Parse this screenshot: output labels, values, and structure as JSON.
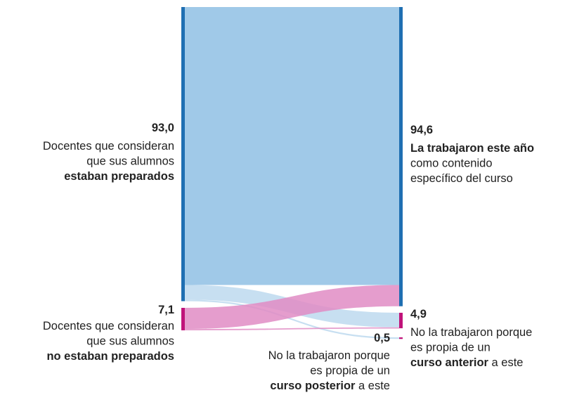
{
  "chart_data": {
    "type": "sankey",
    "nodes": [
      {
        "value": 93.0,
        "value_label": "93,0",
        "side": "left",
        "color": "#1f6fb2",
        "flow_color": "#8fc0e4",
        "lines": [
          [
            {
              "text": "Docentes que consideran"
            }
          ],
          [
            {
              "text": "que sus alumnos"
            }
          ],
          [
            {
              "text": "estaban preparados",
              "bold": true
            }
          ]
        ]
      },
      {
        "value": 7.1,
        "value_label": "7,1",
        "side": "left",
        "color": "#c0137a",
        "flow_color": "#e08cc4",
        "lines": [
          [
            {
              "text": "Docentes que consideran"
            }
          ],
          [
            {
              "text": "que sus alumnos"
            }
          ],
          [
            {
              "text": "no estaban preparados",
              "bold": true
            }
          ]
        ]
      },
      {
        "value": 94.6,
        "value_label": "94,6",
        "side": "right",
        "color": "#1f6fb2",
        "lines": [
          [
            {
              "text": "La trabajaron este año",
              "bold": true
            }
          ],
          [
            {
              "text": "como contenido"
            }
          ],
          [
            {
              "text": "específico del curso"
            }
          ]
        ]
      },
      {
        "value": 4.9,
        "value_label": "4,9",
        "side": "right",
        "color": "#c0137a",
        "lines": [
          [
            {
              "text": "No la trabajaron porque"
            }
          ],
          [
            {
              "text": "es propia de un"
            }
          ],
          [
            {
              "text": "curso anterior",
              "bold": true
            },
            {
              "text": " a este"
            }
          ]
        ]
      },
      {
        "value": 0.5,
        "value_label": "0,5",
        "side": "right",
        "color": "#c0137a",
        "lines": [
          [
            {
              "text": "No la trabajaron porque"
            }
          ],
          [
            {
              "text": "es propia de un"
            }
          ],
          [
            {
              "text": "curso posterior",
              "bold": true
            },
            {
              "text": " a este"
            }
          ]
        ]
      }
    ],
    "links": [
      {
        "source": 0,
        "target": 2,
        "value": 87.9
      },
      {
        "source": 0,
        "target": 3,
        "value": 4.6
      },
      {
        "source": 0,
        "target": 4,
        "value": 0.5
      },
      {
        "source": 1,
        "target": 2,
        "value": 6.7
      },
      {
        "source": 1,
        "target": 3,
        "value": 0.4
      }
    ]
  }
}
